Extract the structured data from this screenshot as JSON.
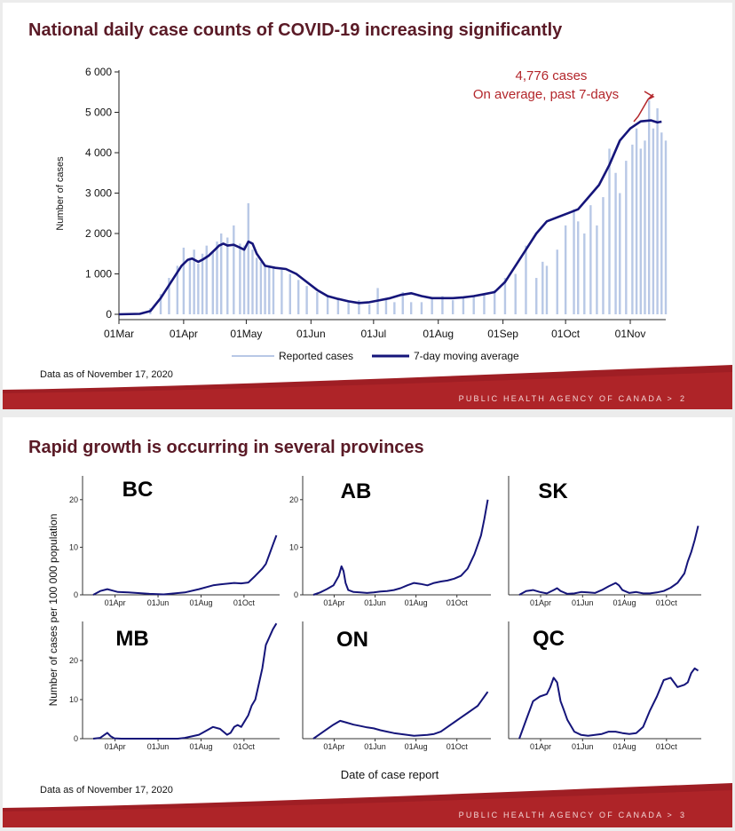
{
  "slide1": {
    "title": "National daily case counts of COVID-19 increasing significantly",
    "data_note": "Data as of November 17, 2020",
    "footer": "PUBLIC HEALTH AGENCY OF CANADA  >",
    "page": "2",
    "colors": {
      "bars": "#b8c8e6",
      "line": "#15157a",
      "annotation": "#b3262b",
      "title": "#5a1a26"
    }
  },
  "slide2": {
    "title": "Rapid growth is occurring in several provinces",
    "y_label": "Number of cases per 100 000 population",
    "x_label": "Date of case report",
    "data_note": "Data as of November 17, 2020",
    "footer": "PUBLIC HEALTH AGENCY OF CANADA  >",
    "page": "3"
  },
  "chart_data": [
    {
      "type": "bar",
      "chart_id": "national",
      "ylabel": "Number of cases",
      "ylim": [
        0,
        6000
      ],
      "y_ticks": [
        "0",
        "1 000",
        "2 000",
        "3 000",
        "4 000",
        "5 000",
        "6 000"
      ],
      "x_ticks": [
        "01Mar",
        "01Apr",
        "01May",
        "01Jun",
        "01Jul",
        "01Aug",
        "01Sep",
        "01Oct",
        "01Nov"
      ],
      "x_range_days": [
        0,
        262
      ],
      "legend": [
        "Reported cases",
        "7-day moving average"
      ],
      "legend_position": "bottom",
      "annotation": [
        "4,776 cases",
        "On average, past 7-days"
      ],
      "series": [
        {
          "name": "Reported cases",
          "type": "bar",
          "x_days": [
            10,
            15,
            20,
            24,
            28,
            31,
            34,
            36,
            38,
            40,
            42,
            45,
            47,
            49,
            52,
            55,
            58,
            60,
            62,
            64,
            66,
            68,
            70,
            72,
            74,
            78,
            82,
            86,
            90,
            95,
            100,
            105,
            110,
            115,
            120,
            124,
            128,
            132,
            136,
            140,
            145,
            150,
            155,
            160,
            165,
            170,
            175,
            180,
            185,
            190,
            195,
            200,
            203,
            205,
            210,
            214,
            218,
            220,
            223,
            226,
            229,
            232,
            235,
            238,
            240,
            243,
            246,
            248,
            250,
            252,
            254,
            256,
            258,
            260,
            262
          ],
          "values": [
            20,
            150,
            500,
            900,
            1200,
            1650,
            1400,
            1600,
            1250,
            1500,
            1700,
            1550,
            1800,
            2000,
            1900,
            2200,
            1750,
            1700,
            2750,
            1600,
            1400,
            1300,
            1200,
            1200,
            1150,
            1100,
            1000,
            850,
            700,
            550,
            450,
            380,
            300,
            350,
            250,
            650,
            400,
            300,
            550,
            300,
            300,
            400,
            450,
            350,
            420,
            450,
            500,
            600,
            900,
            1000,
            1700,
            900,
            1300,
            1200,
            1600,
            2200,
            2600,
            2300,
            2000,
            2700,
            2200,
            2900,
            4100,
            3500,
            3000,
            3800,
            4200,
            4600,
            4100,
            4300,
            5300,
            4600,
            5100,
            4500,
            4300
          ]
        },
        {
          "name": "7-day moving average",
          "type": "line",
          "x_days": [
            0,
            10,
            15,
            20,
            25,
            30,
            33,
            35,
            38,
            40,
            43,
            46,
            48,
            50,
            52,
            55,
            58,
            60,
            62,
            64,
            66,
            70,
            75,
            80,
            85,
            90,
            95,
            100,
            105,
            110,
            115,
            120,
            125,
            130,
            135,
            140,
            145,
            150,
            155,
            160,
            165,
            170,
            175,
            180,
            185,
            190,
            195,
            200,
            205,
            210,
            215,
            220,
            225,
            230,
            235,
            240,
            245,
            250,
            255,
            258,
            260
          ],
          "values": [
            0,
            10,
            80,
            400,
            800,
            1200,
            1350,
            1380,
            1300,
            1350,
            1450,
            1600,
            1700,
            1750,
            1700,
            1720,
            1650,
            1600,
            1800,
            1750,
            1500,
            1200,
            1150,
            1120,
            1000,
            800,
            600,
            450,
            380,
            320,
            280,
            300,
            350,
            400,
            480,
            520,
            450,
            400,
            400,
            400,
            420,
            450,
            500,
            550,
            800,
            1200,
            1600,
            2000,
            2300,
            2400,
            2500,
            2600,
            2900,
            3200,
            3700,
            4300,
            4600,
            4776,
            4800,
            4750,
            4770
          ]
        }
      ]
    },
    {
      "type": "line",
      "chart_id": "BC",
      "title": "BC",
      "ylim": [
        0,
        25
      ],
      "y_ticks": [
        "0",
        "10",
        "20"
      ],
      "x_ticks": [
        "01Apr",
        "01Jun",
        "01Aug",
        "01Oct"
      ],
      "series": [
        {
          "x_days": [
            0,
            10,
            20,
            35,
            50,
            80,
            100,
            130,
            150,
            170,
            180,
            200,
            210,
            220,
            230,
            240,
            245,
            250,
            255,
            260
          ],
          "values": [
            0,
            0.8,
            1.2,
            0.6,
            0.5,
            0.2,
            0.1,
            0.5,
            1.2,
            2.0,
            2.2,
            2.5,
            2.4,
            2.6,
            4,
            5.5,
            6.5,
            8.5,
            10.5,
            12.5
          ]
        }
      ]
    },
    {
      "type": "line",
      "chart_id": "AB",
      "title": "AB",
      "ylim": [
        0,
        25
      ],
      "y_ticks": [
        "0",
        "10",
        "20"
      ],
      "x_ticks": [
        "01Apr",
        "01Jun",
        "01Aug",
        "01Oct"
      ],
      "series": [
        {
          "x_days": [
            0,
            10,
            20,
            30,
            38,
            42,
            45,
            48,
            52,
            60,
            70,
            80,
            90,
            100,
            110,
            120,
            130,
            140,
            150,
            160,
            170,
            180,
            190,
            200,
            210,
            220,
            230,
            240,
            245,
            250,
            255,
            260
          ],
          "values": [
            0,
            0.5,
            1.2,
            2.0,
            4.0,
            6.0,
            5.0,
            2.5,
            1.0,
            0.6,
            0.5,
            0.4,
            0.5,
            0.7,
            0.8,
            1.0,
            1.4,
            2.0,
            2.5,
            2.3,
            2.0,
            2.5,
            2.8,
            3.0,
            3.4,
            4.0,
            5.5,
            8.5,
            10.5,
            12.5,
            16,
            20
          ]
        }
      ]
    },
    {
      "type": "line",
      "chart_id": "SK",
      "title": "SK",
      "ylim": [
        0,
        25
      ],
      "y_ticks": [],
      "x_ticks": [
        "01Apr",
        "01Jun",
        "01Aug",
        "01Oct"
      ],
      "series": [
        {
          "x_days": [
            0,
            10,
            20,
            30,
            40,
            50,
            55,
            60,
            70,
            80,
            90,
            100,
            110,
            120,
            130,
            140,
            145,
            150,
            160,
            170,
            180,
            190,
            200,
            210,
            220,
            230,
            240,
            245,
            250,
            255,
            260
          ],
          "values": [
            0,
            0.8,
            1.0,
            0.6,
            0.3,
            1.0,
            1.4,
            0.8,
            0.2,
            0.3,
            0.6,
            0.5,
            0.4,
            1.0,
            1.8,
            2.5,
            2.0,
            1.0,
            0.4,
            0.6,
            0.3,
            0.3,
            0.5,
            0.8,
            1.5,
            2.5,
            4.5,
            7,
            9,
            11.5,
            14.5
          ]
        }
      ]
    },
    {
      "type": "line",
      "chart_id": "MB",
      "title": "MB",
      "ylim": [
        0,
        30
      ],
      "y_ticks": [
        "0",
        "10",
        "20"
      ],
      "x_ticks": [
        "01Apr",
        "01Jun",
        "01Aug",
        "01Oct"
      ],
      "series": [
        {
          "x_days": [
            0,
            10,
            20,
            25,
            30,
            40,
            60,
            80,
            100,
            120,
            130,
            140,
            150,
            160,
            170,
            180,
            190,
            195,
            200,
            205,
            210,
            215,
            220,
            225,
            230,
            235,
            240,
            245,
            250,
            255,
            260
          ],
          "values": [
            0,
            0.2,
            1.5,
            0.6,
            0.1,
            0,
            0,
            0,
            0,
            0,
            0.2,
            0.6,
            1.0,
            2.0,
            3.0,
            2.5,
            1.0,
            1.5,
            3.0,
            3.5,
            3.0,
            4.5,
            6.0,
            8.5,
            10.0,
            14.0,
            18.0,
            24.0,
            26.0,
            28.0,
            29.5
          ]
        }
      ]
    },
    {
      "type": "line",
      "chart_id": "ON",
      "title": "ON",
      "ylim": [
        0,
        25
      ],
      "y_ticks": [],
      "x_ticks": [
        "01Apr",
        "01Jun",
        "01Aug",
        "01Oct"
      ],
      "series": [
        {
          "x_days": [
            0,
            10,
            20,
            30,
            40,
            50,
            60,
            70,
            80,
            90,
            100,
            110,
            120,
            130,
            140,
            150,
            160,
            170,
            180,
            190,
            200,
            210,
            220,
            230,
            240,
            245,
            250,
            255,
            260
          ],
          "values": [
            0,
            1.0,
            2.0,
            3.0,
            3.8,
            3.4,
            3.0,
            2.7,
            2.4,
            2.2,
            1.8,
            1.5,
            1.2,
            1.0,
            0.8,
            0.6,
            0.7,
            0.8,
            1.0,
            1.5,
            2.5,
            3.5,
            4.5,
            5.5,
            6.5,
            7.0,
            8.0,
            9.0,
            10.0
          ]
        }
      ]
    },
    {
      "type": "line",
      "chart_id": "QC",
      "title": "QC",
      "ylim": [
        0,
        25
      ],
      "y_ticks": [],
      "x_ticks": [
        "01Apr",
        "01Jun",
        "01Aug",
        "01Oct"
      ],
      "series": [
        {
          "x_days": [
            0,
            10,
            20,
            30,
            40,
            45,
            50,
            55,
            60,
            65,
            70,
            80,
            90,
            100,
            110,
            120,
            130,
            140,
            150,
            160,
            170,
            180,
            190,
            200,
            210,
            220,
            230,
            240,
            245,
            250,
            255,
            260
          ],
          "values": [
            0,
            4,
            8,
            9,
            9.5,
            11,
            13,
            12,
            8,
            6,
            4,
            1.5,
            0.8,
            0.6,
            0.8,
            1.0,
            1.5,
            1.5,
            1.2,
            1.0,
            1.2,
            2.5,
            6.0,
            9.0,
            12.5,
            13.0,
            11.0,
            11.5,
            12.0,
            14.0,
            15.0,
            14.5
          ]
        }
      ]
    }
  ]
}
